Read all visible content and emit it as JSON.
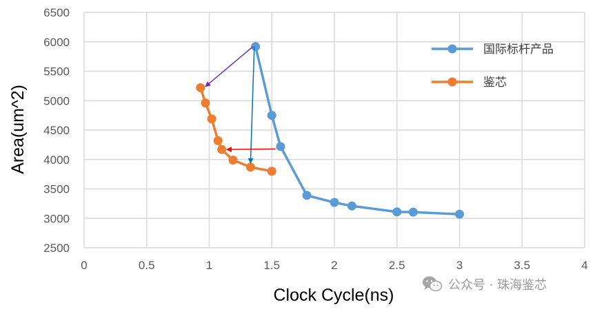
{
  "chart_data": {
    "type": "line",
    "title": "",
    "xlabel": "Clock Cycle(ns)",
    "ylabel": "Area(um^2)",
    "xlim": [
      0,
      4
    ],
    "ylim": [
      2500,
      6500
    ],
    "xticks": [
      0,
      0.5,
      1,
      1.5,
      2,
      2.5,
      3,
      3.5,
      4
    ],
    "xtick_labels": [
      "0",
      "0.5",
      "1",
      "1.5",
      "2",
      "2.5",
      "3",
      "3.5",
      "4"
    ],
    "yticks": [
      2500,
      3000,
      3500,
      4000,
      4500,
      5000,
      5500,
      6000,
      6500
    ],
    "ytick_labels": [
      "2500",
      "3000",
      "3500",
      "4000",
      "4500",
      "5000",
      "5500",
      "6000",
      "6500"
    ],
    "grid": true,
    "legend_position": "right",
    "series": [
      {
        "name": "国际标杆产品",
        "color": "#5B9BD5",
        "x": [
          1.37,
          1.5,
          1.57,
          1.78,
          2.0,
          2.14,
          2.5,
          2.63,
          3.0
        ],
        "y": [
          5920,
          4750,
          4220,
          3390,
          3270,
          3210,
          3110,
          3105,
          3070
        ]
      },
      {
        "name": "鉴芯",
        "color": "#ED7D31",
        "x": [
          0.93,
          0.97,
          1.02,
          1.07,
          1.1,
          1.19,
          1.33,
          1.5
        ],
        "y": [
          5220,
          4960,
          4690,
          4320,
          4170,
          3990,
          3870,
          3800
        ]
      }
    ],
    "annotations": [
      {
        "type": "arrow",
        "color": "#7030A0",
        "from": [
          1.35,
          5920
        ],
        "to": [
          0.97,
          5240
        ]
      },
      {
        "type": "arrow",
        "color": "#0070C0",
        "from": [
          1.36,
          5920
        ],
        "to": [
          1.33,
          3940
        ]
      },
      {
        "type": "arrow",
        "color": "#FF0000",
        "from": [
          1.53,
          4180
        ],
        "to": [
          1.14,
          4170
        ]
      }
    ]
  },
  "watermark": {
    "icon": "wechat-icon",
    "text": "公众号 · 珠海鉴芯"
  }
}
